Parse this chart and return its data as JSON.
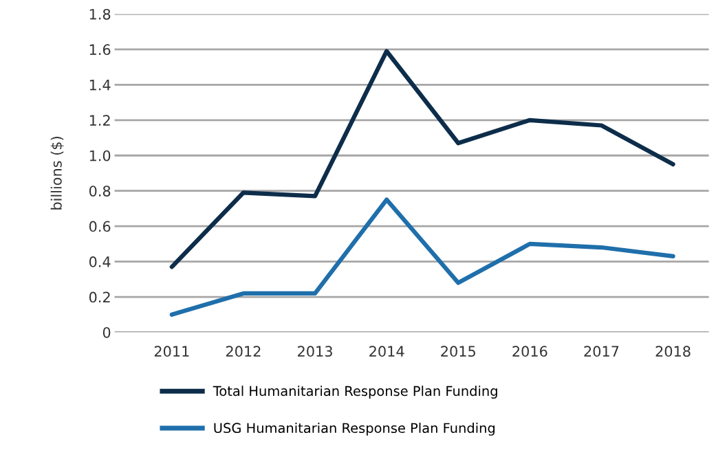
{
  "chart_data": {
    "type": "line",
    "ylabel": "billions ($)",
    "categories": [
      "2011",
      "2012",
      "2013",
      "2014",
      "2015",
      "2016",
      "2017",
      "2018"
    ],
    "series": [
      {
        "name": "Total Humanitarian Response Plan Funding",
        "color": "#0d2d4a",
        "values": [
          0.37,
          0.79,
          0.77,
          1.59,
          1.07,
          1.2,
          1.17,
          0.95
        ]
      },
      {
        "name": "USG Humanitarian Response Plan Funding",
        "color": "#1f6fab",
        "values": [
          0.1,
          0.22,
          0.22,
          0.75,
          0.28,
          0.5,
          0.48,
          0.43
        ]
      }
    ],
    "ylim": [
      0,
      1.8
    ],
    "yticks": [
      {
        "value": 0,
        "label": "0"
      },
      {
        "value": 0.2,
        "label": "0.2"
      },
      {
        "value": 0.4,
        "label": "0.4"
      },
      {
        "value": 0.6,
        "label": "0.6"
      },
      {
        "value": 0.8,
        "label": "0.8"
      },
      {
        "value": 1.0,
        "label": "1.0"
      },
      {
        "value": 1.2,
        "label": "1.2"
      },
      {
        "value": 1.4,
        "label": "1.4"
      },
      {
        "value": 1.6,
        "label": "1.6"
      },
      {
        "value": 1.8,
        "label": "1.8"
      }
    ],
    "grid": "y",
    "legend": "bottom",
    "marker": "none",
    "line_style": "solid"
  }
}
